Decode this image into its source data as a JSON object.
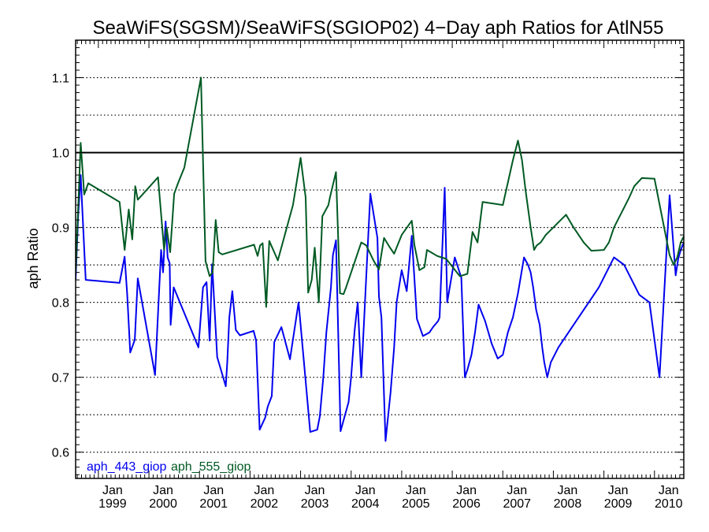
{
  "chart_data": {
    "type": "line",
    "title": "SeaWiFS(SGSM)/SeaWiFS(SGIOP02) 4−Day aph Ratios for AtlN55",
    "xlabel": "",
    "ylabel": "aph Ratio",
    "xlim": [
      1998.55,
      2010.58
    ],
    "ylim": [
      0.565,
      1.15
    ],
    "y_ticks": [
      "0.6",
      "0.7",
      "0.8",
      "0.9",
      "1.0",
      "1.1"
    ],
    "y_tick_values": [
      0.6,
      0.7,
      0.8,
      0.9,
      1.0,
      1.1
    ],
    "y_dotted_grid": [
      0.6,
      0.65,
      0.7,
      0.75,
      0.8,
      0.85,
      0.9,
      0.95,
      1.05,
      1.1
    ],
    "reference_line": 1.0,
    "x_tick_positions": [
      1999.0,
      2000.0,
      2001.0,
      2002.0,
      2003.0,
      2004.0,
      2005.0,
      2006.0,
      2007.0,
      2008.0,
      2009.0,
      2010.0
    ],
    "x_tick_labels": [
      {
        "month": "Jan",
        "year": "1999"
      },
      {
        "month": "Jan",
        "year": "2000"
      },
      {
        "month": "Jan",
        "year": "2001"
      },
      {
        "month": "Jan",
        "year": "2002"
      },
      {
        "month": "Jan",
        "year": "2003"
      },
      {
        "month": "Jan",
        "year": "2004"
      },
      {
        "month": "Jan",
        "year": "2005"
      },
      {
        "month": "Jan",
        "year": "2006"
      },
      {
        "month": "Jan",
        "year": "2007"
      },
      {
        "month": "Jan",
        "year": "2008"
      },
      {
        "month": "Jan",
        "year": "2009"
      },
      {
        "month": "Jan",
        "year": "2010"
      }
    ],
    "grid": "horizontal dotted",
    "legend_placement": "bottom-left",
    "series": [
      {
        "name": "aph_443_giop",
        "color": "#0000ee",
        "x": [
          1998.55,
          1998.6,
          1998.65,
          1998.75,
          1999.42,
          1999.52,
          1999.57,
          1999.63,
          1999.72,
          1999.78,
          2000.12,
          2000.24,
          2000.28,
          2000.33,
          2000.37,
          2000.41,
          2000.43,
          2000.49,
          2000.98,
          2001.07,
          2001.14,
          2001.2,
          2001.25,
          2001.35,
          2001.52,
          2001.55,
          2001.59,
          2001.65,
          2001.72,
          2001.8,
          2002.07,
          2002.12,
          2002.19,
          2002.3,
          2002.35,
          2002.43,
          2002.48,
          2002.62,
          2002.79,
          2002.96,
          2003.19,
          2003.33,
          2003.38,
          2003.45,
          2003.51,
          2003.6,
          2003.64,
          2003.7,
          2003.79,
          2003.95,
          2004.0,
          2004.07,
          2004.13,
          2004.2,
          2004.38,
          2004.52,
          2004.55,
          2004.6,
          2004.68,
          2004.78,
          2004.85,
          2004.9,
          2005.0,
          2005.1,
          2005.2,
          2005.3,
          2005.42,
          2005.55,
          2005.62,
          2005.72,
          2005.75,
          2005.85,
          2005.9,
          2006.05,
          2006.18,
          2006.25,
          2006.3,
          2006.38,
          2006.45,
          2006.52,
          2006.65,
          2006.78,
          2006.9,
          2007.0,
          2007.1,
          2007.2,
          2007.3,
          2007.42,
          2007.5,
          2007.55,
          2007.6,
          2007.66,
          2007.73,
          2007.78,
          2007.82,
          2007.88,
          2007.95,
          2008.1,
          2008.3,
          2008.5,
          2008.7,
          2008.9,
          2009.05,
          2009.2,
          2009.4,
          2009.55,
          2009.7,
          2009.9,
          2010.1,
          2010.3,
          2010.42,
          2010.47,
          2010.52,
          2010.58
        ],
        "values": [
          0.83,
          0.915,
          0.97,
          0.83,
          0.826,
          0.861,
          0.81,
          0.733,
          0.75,
          0.832,
          0.703,
          0.87,
          0.84,
          0.908,
          0.86,
          0.852,
          0.77,
          0.82,
          0.74,
          0.82,
          0.827,
          0.749,
          0.851,
          0.727,
          0.688,
          0.72,
          0.78,
          0.815,
          0.763,
          0.756,
          0.762,
          0.749,
          0.63,
          0.646,
          0.661,
          0.675,
          0.747,
          0.767,
          0.724,
          0.8,
          0.627,
          0.63,
          0.648,
          0.7,
          0.76,
          0.82,
          0.863,
          0.883,
          0.628,
          0.667,
          0.7,
          0.763,
          0.8,
          0.7,
          0.945,
          0.886,
          0.808,
          0.78,
          0.615,
          0.68,
          0.74,
          0.8,
          0.843,
          0.815,
          0.889,
          0.778,
          0.755,
          0.76,
          0.767,
          0.775,
          0.78,
          0.953,
          0.8,
          0.86,
          0.833,
          0.7,
          0.71,
          0.73,
          0.76,
          0.797,
          0.775,
          0.745,
          0.725,
          0.73,
          0.76,
          0.78,
          0.812,
          0.86,
          0.85,
          0.84,
          0.82,
          0.79,
          0.77,
          0.74,
          0.72,
          0.7,
          0.72,
          0.74,
          0.76,
          0.78,
          0.8,
          0.82,
          0.84,
          0.86,
          0.85,
          0.83,
          0.81,
          0.8,
          0.7,
          0.943,
          0.836,
          0.858,
          0.87,
          0.88
        ]
      },
      {
        "name": "aph_555_giop",
        "color": "#005a23",
        "x": [
          1998.55,
          1998.62,
          1998.65,
          1998.72,
          1998.8,
          1999.42,
          1999.52,
          1999.6,
          1999.67,
          1999.73,
          1999.78,
          2000.18,
          2000.3,
          2000.35,
          2000.42,
          2000.5,
          2000.58,
          2000.7,
          2001.03,
          2001.12,
          2001.2,
          2001.26,
          2001.32,
          2001.38,
          2001.45,
          2002.08,
          2002.15,
          2002.2,
          2002.25,
          2002.32,
          2002.38,
          2002.55,
          2002.85,
          2003.0,
          2003.1,
          2003.15,
          2003.22,
          2003.28,
          2003.36,
          2003.43,
          2003.55,
          2003.58,
          2003.7,
          2003.78,
          2003.85,
          2003.9,
          2004.05,
          2004.2,
          2004.3,
          2004.45,
          2004.55,
          2004.65,
          2004.75,
          2004.85,
          2005.0,
          2005.2,
          2005.25,
          2005.35,
          2005.45,
          2005.5,
          2005.6,
          2005.7,
          2005.88,
          2006.15,
          2006.3,
          2006.4,
          2006.5,
          2006.6,
          2007.0,
          2007.1,
          2007.2,
          2007.3,
          2007.38,
          2007.45,
          2007.55,
          2007.62,
          2007.67,
          2007.75,
          2007.85,
          2008.0,
          2008.25,
          2008.4,
          2008.6,
          2008.75,
          2009.0,
          2009.1,
          2009.2,
          2009.35,
          2009.5,
          2009.6,
          2009.75,
          2010.0,
          2010.3,
          2010.38,
          2010.45,
          2010.52,
          2010.58
        ],
        "values": [
          0.84,
          0.96,
          1.013,
          0.944,
          0.959,
          0.934,
          0.87,
          0.924,
          0.884,
          0.955,
          0.937,
          0.967,
          0.87,
          0.9,
          0.867,
          0.945,
          0.96,
          0.98,
          1.1,
          0.855,
          0.835,
          0.84,
          0.91,
          0.867,
          0.864,
          0.877,
          0.862,
          0.876,
          0.879,
          0.794,
          0.882,
          0.856,
          0.93,
          0.993,
          0.94,
          0.813,
          0.83,
          0.873,
          0.8,
          0.915,
          0.93,
          0.94,
          0.974,
          0.812,
          0.811,
          0.82,
          0.85,
          0.88,
          0.876,
          0.855,
          0.844,
          0.886,
          0.875,
          0.865,
          0.89,
          0.909,
          0.877,
          0.843,
          0.847,
          0.87,
          0.866,
          0.862,
          0.858,
          0.835,
          0.838,
          0.894,
          0.88,
          0.934,
          0.93,
          0.96,
          0.99,
          1.016,
          0.99,
          0.95,
          0.9,
          0.87,
          0.876,
          0.88,
          0.89,
          0.9,
          0.917,
          0.9,
          0.88,
          0.869,
          0.87,
          0.88,
          0.9,
          0.92,
          0.94,
          0.955,
          0.966,
          0.965,
          0.863,
          0.85,
          0.86,
          0.88,
          0.888
        ]
      }
    ]
  }
}
